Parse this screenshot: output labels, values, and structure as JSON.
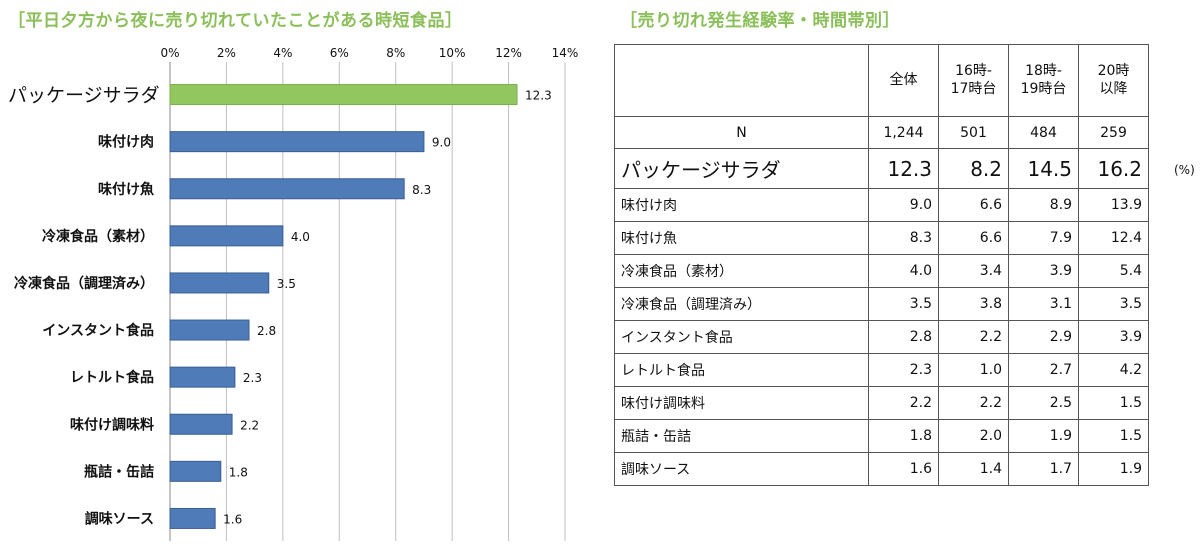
{
  "left_title": "［平日夕方から夜に売り切れていたことがある時短食品］",
  "right_title": "［売り切れ発生経験率・時間帯別］",
  "chart_data": {
    "type": "bar",
    "orientation": "horizontal",
    "title": "［平日夕方から夜に売り切れていたことがある時短食品］",
    "categories": [
      "パッケージサラダ",
      "味付け肉",
      "味付け魚",
      "冷凍食品（素材）",
      "冷凍食品（調理済み）",
      "インスタント食品",
      "レトルト食品",
      "味付け調味料",
      "瓶詰・缶詰",
      "調味ソース"
    ],
    "values": [
      12.3,
      9.0,
      8.3,
      4.0,
      3.5,
      2.8,
      2.3,
      2.2,
      1.8,
      1.6
    ],
    "value_labels": [
      "12.3",
      "9.0",
      "8.3",
      "4.0",
      "3.5",
      "2.8",
      "2.3",
      "2.2",
      "1.8",
      "1.6"
    ],
    "xlim": [
      0,
      14
    ],
    "x_ticks": [
      "0%",
      "2%",
      "4%",
      "6%",
      "8%",
      "10%",
      "12%",
      "14%"
    ],
    "grid": "vertical",
    "highlight_index": 0,
    "colors": {
      "highlight": "#92c65f",
      "bar": "#4f7bb8",
      "bar_border": "#3a5f93",
      "grid": "#bfbfbf"
    }
  },
  "table": {
    "headers": [
      "全体",
      "16時-\n17時台",
      "18時-\n19時台",
      "20時\n以降"
    ],
    "n_row": {
      "label": "N",
      "values": [
        "1,244",
        "501",
        "484",
        "259"
      ]
    },
    "unit": "(%)",
    "rows": [
      {
        "label": "パッケージサラダ",
        "values": [
          "12.3",
          "8.2",
          "14.5",
          "16.2"
        ],
        "highlight": true
      },
      {
        "label": "味付け肉",
        "values": [
          "9.0",
          "6.6",
          "8.9",
          "13.9"
        ]
      },
      {
        "label": "味付け魚",
        "values": [
          "8.3",
          "6.6",
          "7.9",
          "12.4"
        ]
      },
      {
        "label": "冷凍食品（素材）",
        "values": [
          "4.0",
          "3.4",
          "3.9",
          "5.4"
        ]
      },
      {
        "label": "冷凍食品（調理済み）",
        "values": [
          "3.5",
          "3.8",
          "3.1",
          "3.5"
        ]
      },
      {
        "label": "インスタント食品",
        "values": [
          "2.8",
          "2.2",
          "2.9",
          "3.9"
        ]
      },
      {
        "label": "レトルト食品",
        "values": [
          "2.3",
          "1.0",
          "2.7",
          "4.2"
        ]
      },
      {
        "label": "味付け調味料",
        "values": [
          "2.2",
          "2.2",
          "2.5",
          "1.5"
        ]
      },
      {
        "label": "瓶詰・缶詰",
        "values": [
          "1.8",
          "2.0",
          "1.9",
          "1.5"
        ]
      },
      {
        "label": "調味ソース",
        "values": [
          "1.6",
          "1.4",
          "1.7",
          "1.9"
        ]
      }
    ]
  }
}
